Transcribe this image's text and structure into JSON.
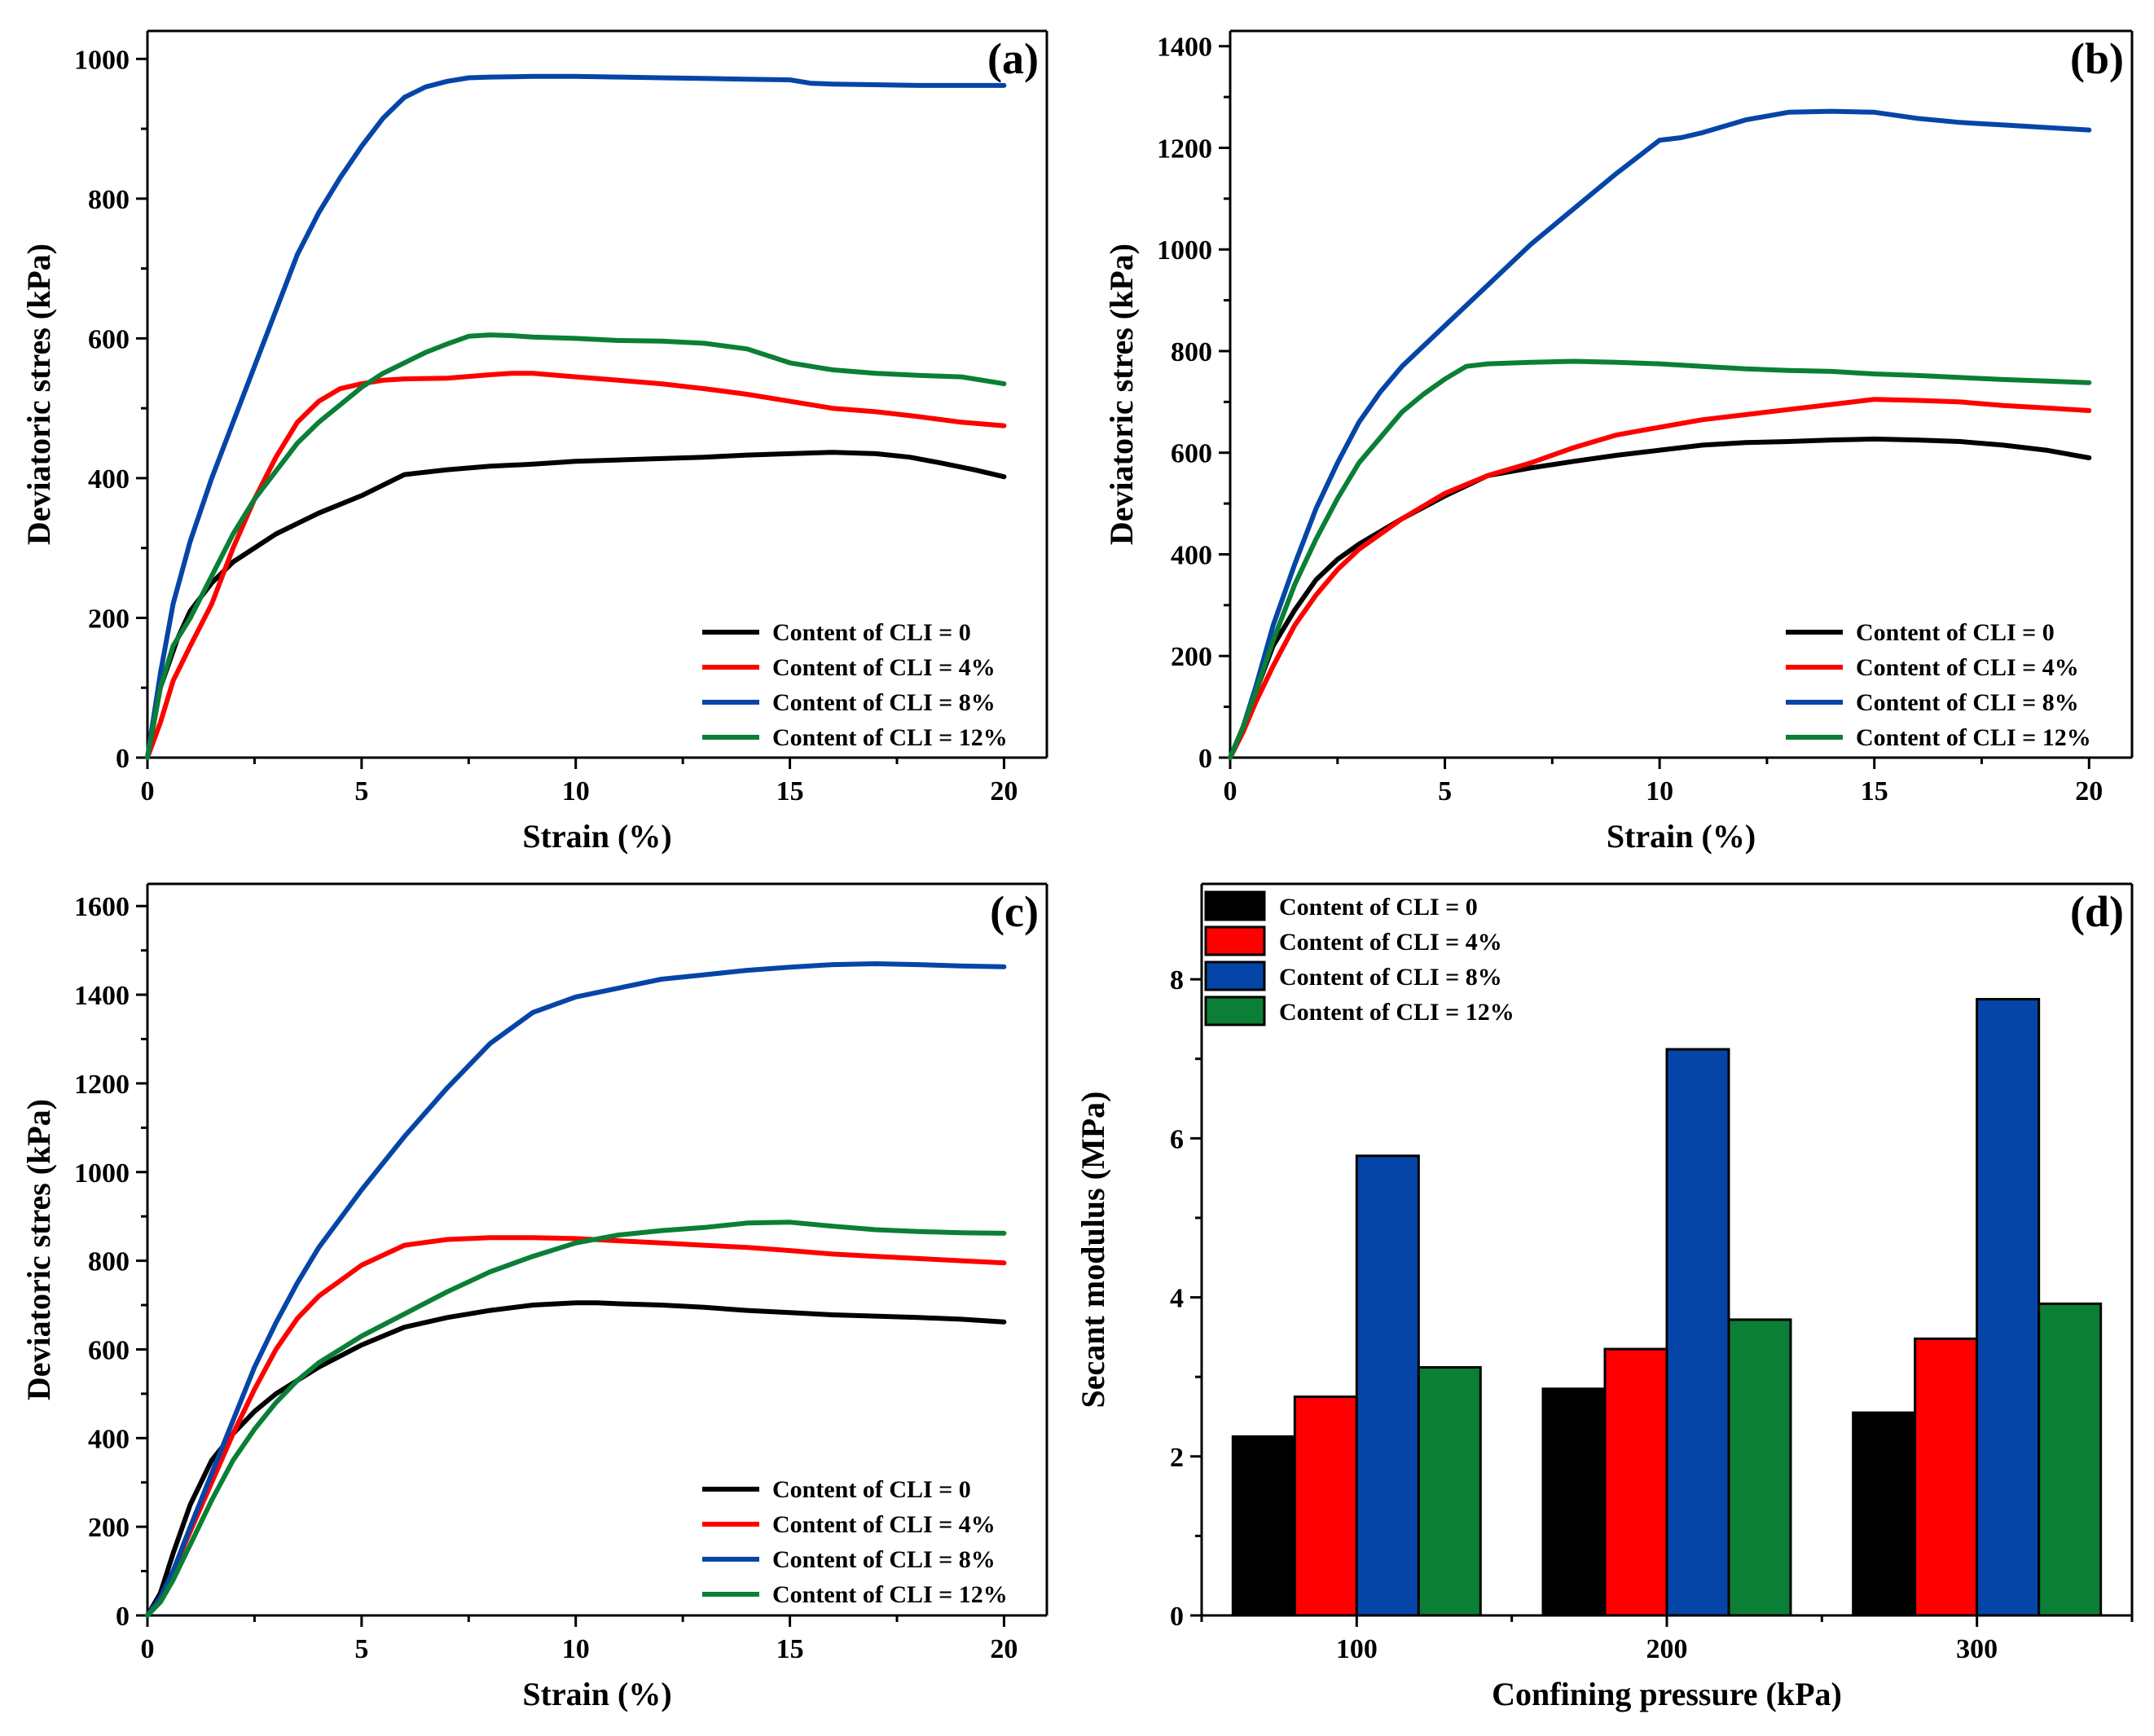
{
  "chart_data": [
    {
      "id": "a",
      "type": "line",
      "panel_label": "(a)",
      "xlabel": "Strain (%)",
      "ylabel": "Deviatoric stres (kPa)",
      "xlim": [
        0,
        21
      ],
      "ylim": [
        0,
        1040
      ],
      "xticks": [
        0,
        5,
        10,
        15,
        20
      ],
      "yticks": [
        0,
        200,
        400,
        600,
        800,
        1000
      ],
      "legend_position": "bottom-right",
      "series": [
        {
          "name": "Content of CLI = 0",
          "color": "#000000",
          "x": [
            0,
            0.3,
            0.7,
            1,
            1.5,
            2,
            3,
            4,
            5,
            6,
            7,
            8,
            9,
            10,
            11,
            12,
            13,
            14,
            15,
            16,
            17,
            17.8,
            18.5,
            19.3,
            20
          ],
          "y": [
            0,
            100,
            170,
            210,
            250,
            280,
            320,
            350,
            375,
            405,
            412,
            417,
            420,
            424,
            426,
            428,
            430,
            433,
            435,
            437,
            435,
            430,
            422,
            412,
            402
          ]
        },
        {
          "name": "Content of CLI = 4%",
          "color": "#ff0000",
          "x": [
            0,
            0.3,
            0.6,
            1,
            1.5,
            2,
            2.5,
            3,
            3.5,
            4,
            4.5,
            5,
            5.5,
            6,
            7,
            8,
            8.5,
            9,
            10,
            11,
            12,
            13,
            14,
            15,
            16,
            17,
            18,
            19,
            20
          ],
          "y": [
            0,
            50,
            110,
            160,
            220,
            300,
            370,
            430,
            480,
            510,
            528,
            535,
            540,
            542,
            543,
            548,
            550,
            550,
            545,
            540,
            535,
            528,
            520,
            510,
            500,
            495,
            488,
            480,
            475
          ]
        },
        {
          "name": "Content of CLI = 8%",
          "color": "#0645a8",
          "x": [
            0,
            0.3,
            0.6,
            1,
            1.5,
            2,
            2.5,
            3,
            3.5,
            4,
            4.5,
            5,
            5.5,
            6,
            6.5,
            7,
            7.5,
            8,
            9,
            10,
            11,
            12,
            13,
            14,
            15,
            15.5,
            16,
            17,
            18,
            19,
            20
          ],
          "y": [
            0,
            120,
            220,
            310,
            400,
            480,
            560,
            640,
            720,
            780,
            830,
            875,
            915,
            945,
            960,
            968,
            973,
            974,
            975,
            975,
            974,
            973,
            972,
            971,
            970,
            965,
            964,
            963,
            962,
            962,
            962
          ]
        },
        {
          "name": "Content of CLI = 12%",
          "color": "#0a7f35",
          "x": [
            0,
            0.3,
            0.6,
            1,
            1.5,
            2,
            2.5,
            3,
            3.5,
            4,
            4.5,
            5,
            5.5,
            6,
            6.5,
            7,
            7.5,
            8,
            8.5,
            9,
            10,
            11,
            12,
            13,
            14,
            15,
            16,
            17,
            18,
            19,
            20
          ],
          "y": [
            0,
            100,
            160,
            200,
            260,
            320,
            370,
            410,
            450,
            480,
            505,
            530,
            550,
            565,
            580,
            592,
            603,
            605,
            604,
            602,
            600,
            597,
            596,
            593,
            585,
            565,
            555,
            550,
            547,
            545,
            535
          ]
        }
      ]
    },
    {
      "id": "b",
      "type": "line",
      "panel_label": "(b)",
      "xlabel": "Strain (%)",
      "ylabel": "Deviatoric stres (kPa)",
      "xlim": [
        0,
        21
      ],
      "ylim": [
        0,
        1430
      ],
      "xticks": [
        0,
        5,
        10,
        15,
        20
      ],
      "yticks": [
        0,
        200,
        400,
        600,
        800,
        1000,
        1200,
        1400
      ],
      "legend_position": "bottom-right",
      "series": [
        {
          "name": "Content of CLI = 0",
          "color": "#000000",
          "x": [
            0,
            0.3,
            0.6,
            1,
            1.5,
            2,
            2.5,
            3,
            4,
            5,
            6,
            7,
            8,
            9,
            10,
            11,
            12,
            13,
            14,
            15,
            16,
            17,
            18,
            19,
            20
          ],
          "y": [
            0,
            60,
            130,
            220,
            290,
            350,
            390,
            420,
            470,
            515,
            555,
            570,
            583,
            595,
            605,
            615,
            620,
            622,
            625,
            627,
            625,
            622,
            615,
            605,
            590
          ]
        },
        {
          "name": "Content of CLI = 4%",
          "color": "#ff0000",
          "x": [
            0,
            0.3,
            0.6,
            1,
            1.5,
            2,
            2.5,
            3,
            4,
            5,
            6,
            7,
            8,
            9,
            10,
            11,
            12,
            13,
            14,
            15,
            16,
            17,
            18,
            19,
            20
          ],
          "y": [
            0,
            50,
            110,
            180,
            260,
            320,
            370,
            410,
            470,
            520,
            555,
            580,
            610,
            635,
            650,
            665,
            675,
            685,
            695,
            705,
            703,
            700,
            693,
            688,
            683
          ]
        },
        {
          "name": "Content of CLI = 8%",
          "color": "#0645a8",
          "x": [
            0,
            0.3,
            0.6,
            1,
            1.5,
            2,
            2.5,
            3,
            3.5,
            4,
            5,
            6,
            7,
            8,
            9,
            10,
            10.5,
            11,
            12,
            13,
            14,
            15,
            16,
            17,
            18,
            19,
            20
          ],
          "y": [
            0,
            60,
            140,
            260,
            380,
            490,
            580,
            660,
            720,
            770,
            850,
            930,
            1010,
            1080,
            1150,
            1215,
            1220,
            1230,
            1255,
            1270,
            1272,
            1270,
            1258,
            1250,
            1245,
            1240,
            1235
          ]
        },
        {
          "name": "Content of CLI = 12%",
          "color": "#0a7f35",
          "x": [
            0,
            0.3,
            0.6,
            1,
            1.5,
            2,
            2.5,
            3,
            3.5,
            4,
            4.5,
            5,
            5.5,
            6,
            7,
            8,
            9,
            10,
            11,
            12,
            13,
            14,
            15,
            16,
            17,
            18,
            19,
            20
          ],
          "y": [
            0,
            60,
            130,
            230,
            340,
            430,
            510,
            580,
            630,
            680,
            715,
            745,
            770,
            775,
            778,
            780,
            778,
            775,
            770,
            765,
            762,
            760,
            755,
            752,
            748,
            744,
            741,
            738
          ]
        }
      ]
    },
    {
      "id": "c",
      "type": "line",
      "panel_label": "(c)",
      "xlabel": "Strain (%)",
      "ylabel": "Deviatoric stres (kPa)",
      "xlim": [
        0,
        21
      ],
      "ylim": [
        0,
        1650
      ],
      "xticks": [
        0,
        5,
        10,
        15,
        20
      ],
      "yticks": [
        0,
        200,
        400,
        600,
        800,
        1000,
        1200,
        1400,
        1600
      ],
      "legend_position": "bottom-right",
      "series": [
        {
          "name": "Content of CLI = 0",
          "color": "#000000",
          "x": [
            0,
            0.3,
            0.6,
            1,
            1.5,
            2,
            2.5,
            3,
            4,
            5,
            6,
            7,
            8,
            9,
            10,
            10.5,
            11,
            12,
            13,
            14,
            15,
            16,
            17,
            18,
            19,
            20
          ],
          "y": [
            0,
            50,
            140,
            250,
            350,
            410,
            460,
            500,
            560,
            610,
            650,
            672,
            688,
            700,
            705,
            705,
            703,
            700,
            695,
            688,
            683,
            678,
            675,
            672,
            668,
            662
          ]
        },
        {
          "name": "Content of CLI = 4%",
          "color": "#ff0000",
          "x": [
            0,
            0.3,
            0.6,
            1,
            1.5,
            2,
            2.5,
            3,
            3.5,
            4,
            5,
            6,
            7,
            8,
            9,
            10,
            11,
            12,
            13,
            14,
            15,
            16,
            17,
            18,
            19,
            20
          ],
          "y": [
            0,
            40,
            100,
            190,
            300,
            410,
            510,
            600,
            670,
            720,
            790,
            835,
            848,
            852,
            852,
            850,
            845,
            840,
            835,
            830,
            823,
            815,
            810,
            805,
            800,
            795
          ]
        },
        {
          "name": "Content of CLI = 8%",
          "color": "#0645a8",
          "x": [
            0,
            0.3,
            0.6,
            1,
            1.5,
            2,
            2.5,
            3,
            3.5,
            4,
            5,
            6,
            7,
            8,
            9,
            10,
            11,
            12,
            13,
            14,
            15,
            16,
            17,
            18,
            19,
            20
          ],
          "y": [
            0,
            40,
            100,
            200,
            320,
            440,
            560,
            660,
            750,
            830,
            960,
            1080,
            1190,
            1290,
            1360,
            1395,
            1415,
            1435,
            1445,
            1455,
            1462,
            1468,
            1470,
            1468,
            1465,
            1463
          ]
        },
        {
          "name": "Content of CLI = 12%",
          "color": "#0a7f35",
          "x": [
            0,
            0.3,
            0.6,
            1,
            1.5,
            2,
            2.5,
            3,
            3.5,
            4,
            5,
            6,
            7,
            8,
            9,
            10,
            11,
            12,
            13,
            14,
            15,
            16,
            17,
            18,
            19,
            20
          ],
          "y": [
            0,
            30,
            80,
            160,
            260,
            350,
            420,
            480,
            530,
            570,
            630,
            680,
            730,
            775,
            810,
            840,
            858,
            868,
            875,
            885,
            887,
            878,
            870,
            866,
            863,
            862
          ]
        }
      ]
    },
    {
      "id": "d",
      "type": "bar",
      "panel_label": "(d)",
      "xlabel": "Confining pressure (kPa)",
      "ylabel": "Secant modulus (MPa)",
      "ylim": [
        0,
        9.2
      ],
      "yticks": [
        0,
        2,
        4,
        6,
        8
      ],
      "categories": [
        "100",
        "200",
        "300"
      ],
      "legend_position": "top-left",
      "series": [
        {
          "name": "Content of CLI = 0",
          "color": "#000000",
          "values": [
            2.25,
            2.85,
            2.55
          ]
        },
        {
          "name": "Content of CLI = 4%",
          "color": "#ff0000",
          "values": [
            2.75,
            3.35,
            3.48
          ]
        },
        {
          "name": "Content of CLI = 8%",
          "color": "#0645a8",
          "values": [
            5.78,
            7.12,
            7.75
          ]
        },
        {
          "name": "Content of CLI = 12%",
          "color": "#0a7f35",
          "values": [
            3.12,
            3.72,
            3.92
          ]
        }
      ]
    }
  ]
}
